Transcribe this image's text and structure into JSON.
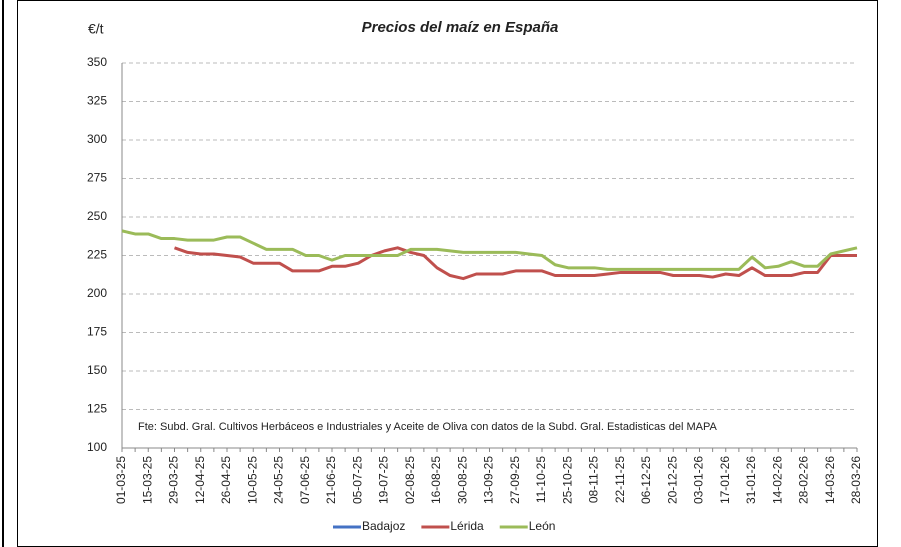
{
  "chart_data": {
    "type": "line",
    "title": "Precios del maíz en España",
    "y_label": "€/t",
    "annotation": "Fte: Subd. Gral. Cultivos Herbáceos e Industriales y Aceite de Oliva con datos de la Subd. Gral. Estadisticas del MAPA",
    "categories": [
      "01-03-25",
      null,
      "15-03-25",
      null,
      "29-03-25",
      null,
      "12-04-25",
      null,
      "26-04-25",
      null,
      "10-05-25",
      null,
      "24-05-25",
      null,
      "07-06-25",
      null,
      "21-06-25",
      null,
      "05-07-25",
      null,
      "19-07-25",
      null,
      "02-08-25",
      null,
      "16-08-25",
      null,
      "30-08-25",
      null,
      "13-09-25",
      null,
      "27-09-25",
      null,
      "11-10-25",
      null,
      "25-10-25",
      null,
      "08-11-25",
      null,
      "22-11-25",
      null,
      "06-12-25",
      null,
      "20-12-25",
      null,
      "03-01-26",
      null,
      "17-01-26",
      null,
      "31-01-26",
      null,
      "14-02-26",
      null,
      "28-02-26",
      null,
      "14-03-26",
      null,
      "28-03-26"
    ],
    "series": [
      {
        "name": "Badajoz",
        "color": "#4472c4",
        "values": [
          null,
          null,
          null,
          null,
          null,
          null,
          null,
          null,
          null,
          null,
          null,
          null,
          null,
          null,
          null,
          null,
          null,
          null,
          null,
          null,
          null,
          null,
          null,
          null,
          null,
          null,
          null,
          null,
          null,
          null,
          null,
          null,
          null,
          null,
          null,
          null,
          null,
          null,
          null,
          null,
          null,
          null,
          null,
          null,
          null,
          null,
          null,
          null,
          null,
          null,
          null,
          null,
          null,
          null,
          null,
          null,
          null
        ]
      },
      {
        "name": "Lérida",
        "color": "#c0504d",
        "values": [
          null,
          null,
          null,
          null,
          230,
          227,
          226,
          226,
          225,
          224,
          220,
          220,
          220,
          215,
          215,
          215,
          218,
          218,
          220,
          225,
          228,
          230,
          227,
          225,
          217,
          212,
          210,
          213,
          213,
          213,
          215,
          215,
          215,
          212,
          212,
          212,
          212,
          213,
          214,
          214,
          214,
          214,
          212,
          212,
          212,
          211,
          213,
          212,
          217,
          212,
          212,
          212,
          214,
          214,
          225,
          225,
          225
        ]
      },
      {
        "name": "León",
        "color": "#9bbb59",
        "values": [
          241,
          239,
          239,
          236,
          236,
          235,
          235,
          235,
          237,
          237,
          233,
          229,
          229,
          229,
          225,
          225,
          222,
          225,
          225,
          225,
          225,
          225,
          229,
          229,
          229,
          228,
          227,
          227,
          227,
          227,
          227,
          226,
          225,
          219,
          217,
          217,
          217,
          216,
          216,
          216,
          216,
          216,
          216,
          216,
          216,
          216,
          216,
          216,
          224,
          217,
          218,
          221,
          218,
          218,
          226,
          228,
          230
        ]
      }
    ],
    "ylim": [
      100,
      350
    ],
    "yticks": [
      100,
      125,
      150,
      175,
      200,
      225,
      250,
      275,
      300,
      325,
      350
    ],
    "grid": true
  }
}
